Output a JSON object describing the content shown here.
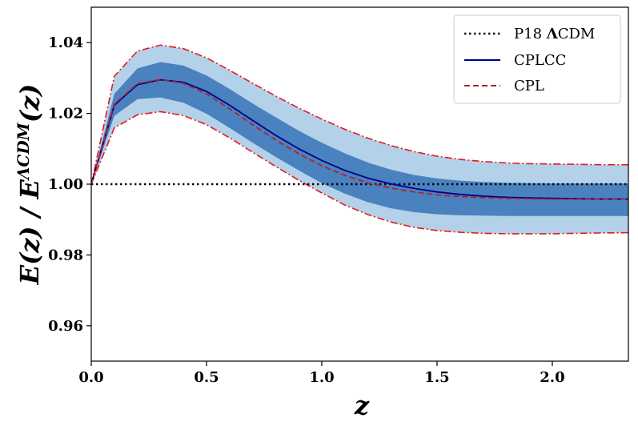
{
  "chart_data": {
    "type": "line",
    "xlabel": "z",
    "ylabel": "E(z) / E^ΛCDM(z)",
    "ylabel_parts": {
      "main": "E(z) / E",
      "sup": "ΛCDM",
      "tail": "(z)"
    },
    "xlim": [
      0.0,
      2.33
    ],
    "ylim": [
      0.95,
      1.05
    ],
    "xticks": [
      0.0,
      0.5,
      1.0,
      1.5,
      2.0
    ],
    "xtick_labels": [
      "0.0",
      "0.5",
      "1.0",
      "1.5",
      "2.0"
    ],
    "yticks": [
      0.96,
      0.98,
      1.0,
      1.02,
      1.04
    ],
    "ytick_labels": [
      "0.96",
      "0.98",
      "1.00",
      "1.02",
      "1.04"
    ],
    "legend_position": "top-right",
    "x": [
      0.0,
      0.1,
      0.2,
      0.3,
      0.4,
      0.5,
      0.6,
      0.7,
      0.8,
      0.9,
      1.0,
      1.1,
      1.2,
      1.3,
      1.4,
      1.5,
      1.6,
      1.7,
      1.8,
      1.9,
      2.0,
      2.1,
      2.2,
      2.33
    ],
    "bands": [
      {
        "level": "2sigma",
        "color": "#b3d1e8",
        "upper": [
          1.0,
          1.0305,
          1.0376,
          1.0393,
          1.0383,
          1.0357,
          1.0322,
          1.0285,
          1.0249,
          1.0215,
          1.0184,
          1.0155,
          1.013,
          1.0109,
          1.0092,
          1.0079,
          1.007,
          1.0064,
          1.006,
          1.0058,
          1.0057,
          1.0056,
          1.0055,
          1.0055
        ],
        "lower": [
          1.0,
          1.0159,
          1.0196,
          1.0205,
          1.0194,
          1.0168,
          1.0131,
          1.009,
          1.005,
          1.0011,
          0.9975,
          0.9941,
          0.9914,
          0.9893,
          0.9878,
          0.9869,
          0.9864,
          0.9861,
          0.986,
          0.986,
          0.986,
          0.9861,
          0.9862,
          0.9863
        ]
      },
      {
        "level": "1sigma",
        "color": "#4a81bf",
        "upper": [
          1.0,
          1.0255,
          1.0327,
          1.0345,
          1.0335,
          1.0307,
          1.0269,
          1.0228,
          1.0189,
          1.0151,
          1.0117,
          1.0087,
          1.0061,
          1.0041,
          1.0026,
          1.0016,
          1.001,
          1.0006,
          1.0004,
          1.0003,
          1.0002,
          1.0002,
          1.0002,
          1.0002
        ],
        "lower": [
          1.0,
          1.0193,
          1.024,
          1.0245,
          1.023,
          1.0199,
          1.0159,
          1.0117,
          1.0077,
          1.0039,
          1.0003,
          0.9973,
          0.9949,
          0.9932,
          0.9921,
          0.9915,
          0.9912,
          0.9911,
          0.991,
          0.991,
          0.991,
          0.991,
          0.991,
          0.991
        ]
      }
    ],
    "series": [
      {
        "name": "P18 ΛCDM",
        "name_parts": {
          "prefix": "P18 ",
          "bold": "Λ",
          "suffix": "CDM"
        },
        "style": "dotted",
        "color": "#000000",
        "values": [
          1.0,
          1.0,
          1.0,
          1.0,
          1.0,
          1.0,
          1.0,
          1.0,
          1.0,
          1.0,
          1.0,
          1.0,
          1.0,
          1.0,
          1.0,
          1.0,
          1.0,
          1.0,
          1.0,
          1.0,
          1.0,
          1.0,
          1.0,
          1.0
        ]
      },
      {
        "name": "CPLCC",
        "style": "solid",
        "color": "#00008b",
        "values": [
          1.0,
          1.0223,
          1.0281,
          1.0295,
          1.0288,
          1.0262,
          1.0223,
          1.018,
          1.0138,
          1.01,
          1.0067,
          1.0039,
          1.0017,
          1.0001,
          0.9988,
          0.9978,
          0.9971,
          0.9966,
          0.9963,
          0.9961,
          0.996,
          0.9959,
          0.9958,
          0.9958
        ]
      },
      {
        "name": "CPL",
        "style": "dashed",
        "color": "#b22222",
        "values": [
          1.0,
          1.0226,
          1.0284,
          1.0296,
          1.0285,
          1.0255,
          1.0213,
          1.0168,
          1.0125,
          1.0086,
          1.0052,
          1.0025,
          1.0004,
          0.9989,
          0.9978,
          0.997,
          0.9965,
          0.9962,
          0.996,
          0.9959,
          0.9958,
          0.9958,
          0.9958,
          0.9958
        ]
      }
    ],
    "envelope": {
      "style": "dashdot",
      "color": "#e41a1c",
      "upper": [
        1.0,
        1.0305,
        1.0376,
        1.0393,
        1.0383,
        1.0357,
        1.0322,
        1.0285,
        1.0249,
        1.0215,
        1.0184,
        1.0155,
        1.013,
        1.0109,
        1.0092,
        1.0079,
        1.007,
        1.0064,
        1.006,
        1.0058,
        1.0057,
        1.0056,
        1.0055,
        1.0055
      ],
      "lower": [
        1.0,
        1.0159,
        1.0196,
        1.0205,
        1.0194,
        1.0168,
        1.0131,
        1.009,
        1.005,
        1.0011,
        0.9975,
        0.9941,
        0.9914,
        0.9893,
        0.9878,
        0.9869,
        0.9864,
        0.9861,
        0.986,
        0.986,
        0.986,
        0.9861,
        0.9862,
        0.9863
      ]
    }
  }
}
